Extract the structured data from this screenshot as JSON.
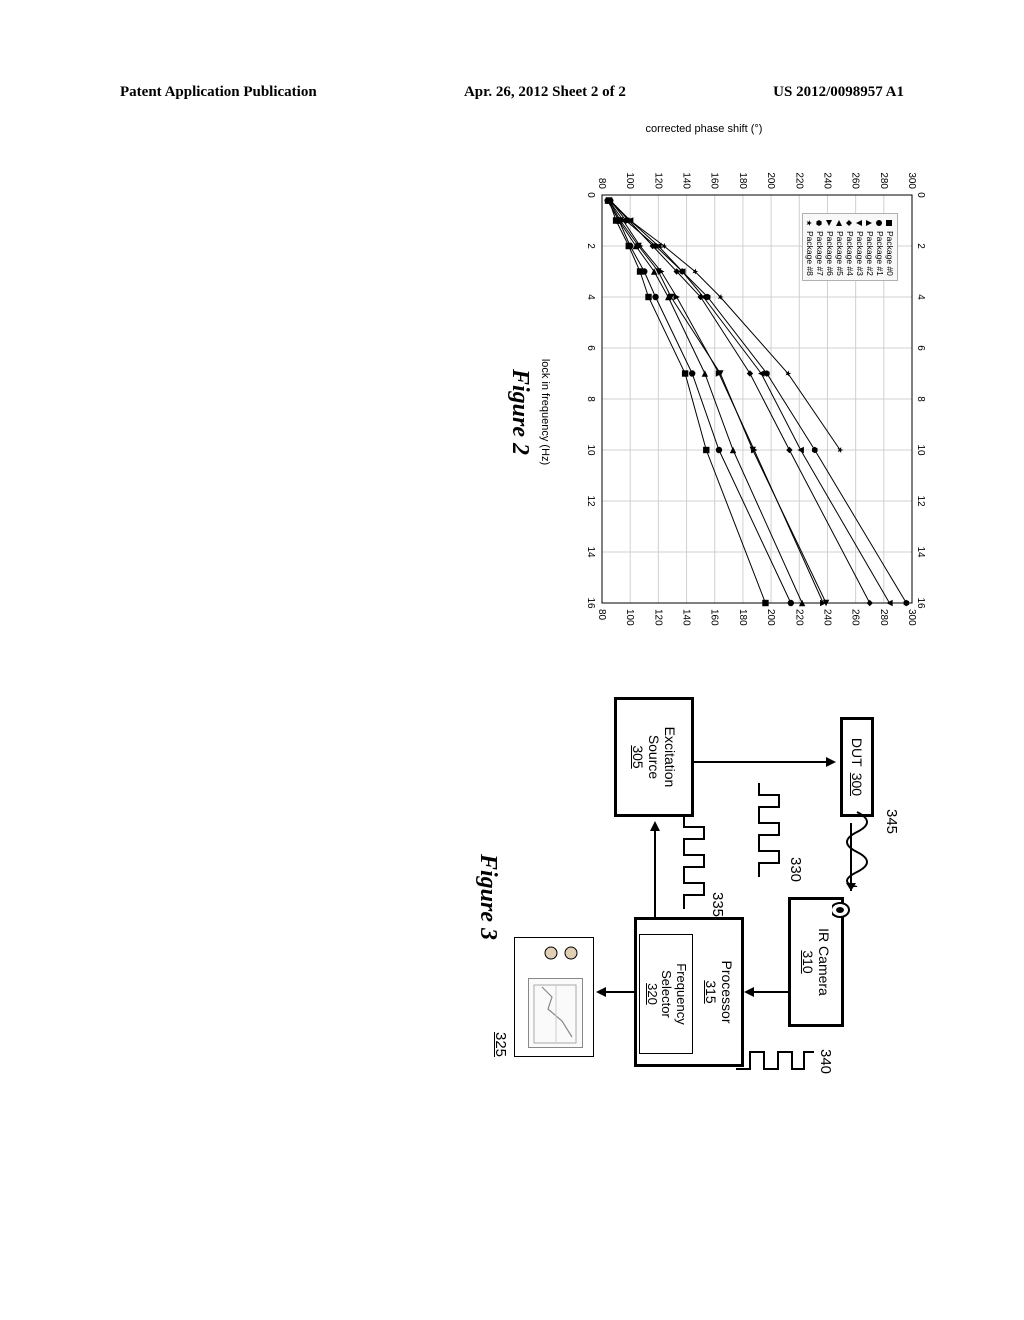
{
  "header": {
    "left": "Patent Application Publication",
    "center": "Apr. 26, 2012  Sheet 2 of 2",
    "right": "US 2012/0098957 A1"
  },
  "figure2": {
    "caption": "Figure 2",
    "ylabel": "corrected phase shift (°)",
    "xlabel": "lock in frequency (Hz)",
    "xlim": [
      0,
      16
    ],
    "ylim": [
      80,
      300
    ],
    "xticks": [
      0,
      2,
      4,
      6,
      8,
      10,
      12,
      14,
      16
    ],
    "yticks": [
      80,
      100,
      120,
      140,
      160,
      180,
      200,
      220,
      240,
      260,
      280,
      300
    ],
    "grid_color": "#d0d0d0",
    "axis_color": "#000000",
    "line_color": "#000000",
    "legend": [
      {
        "label": "Package #0",
        "marker": "square"
      },
      {
        "label": "Package #1",
        "marker": "circle"
      },
      {
        "label": "Package #2",
        "marker": "triangle-up"
      },
      {
        "label": "Package #3",
        "marker": "triangle-down"
      },
      {
        "label": "Package #4",
        "marker": "diamond"
      },
      {
        "label": "Package #5",
        "marker": "triangle-left"
      },
      {
        "label": "Package #6",
        "marker": "triangle-right"
      },
      {
        "label": "Package #7",
        "marker": "hexagon"
      },
      {
        "label": "Package #8",
        "marker": "star"
      }
    ],
    "series": [
      {
        "marker": "square",
        "points": [
          [
            0.22,
            85
          ],
          [
            1,
            90
          ],
          [
            2,
            99
          ],
          [
            3,
            107
          ],
          [
            4,
            113
          ],
          [
            7,
            139
          ],
          [
            10,
            154
          ],
          [
            16,
            196
          ]
        ]
      },
      {
        "marker": "circle",
        "points": [
          [
            0.22,
            84
          ],
          [
            1,
            92
          ],
          [
            2,
            100
          ],
          [
            3,
            110
          ],
          [
            4,
            118
          ],
          [
            7,
            144
          ],
          [
            10,
            163
          ],
          [
            16,
            214
          ]
        ]
      },
      {
        "marker": "triangle-up",
        "points": [
          [
            0.22,
            85
          ],
          [
            1,
            95
          ],
          [
            2,
            107
          ],
          [
            3,
            122
          ],
          [
            4,
            133
          ],
          [
            7,
            163
          ],
          [
            10,
            188
          ],
          [
            16,
            237
          ]
        ]
      },
      {
        "marker": "triangle-down",
        "points": [
          [
            0.22,
            85
          ],
          [
            1,
            100
          ],
          [
            2,
            120
          ],
          [
            3,
            137
          ],
          [
            4,
            152
          ],
          [
            7,
            193
          ],
          [
            10,
            221
          ],
          [
            16,
            284
          ]
        ]
      },
      {
        "marker": "diamond",
        "points": [
          [
            0.22,
            86
          ],
          [
            1,
            99
          ],
          [
            2,
            116
          ],
          [
            3,
            133
          ],
          [
            4,
            150
          ],
          [
            7,
            185
          ],
          [
            10,
            213
          ],
          [
            16,
            270
          ]
        ]
      },
      {
        "marker": "triangle-left",
        "points": [
          [
            0.22,
            84
          ],
          [
            1,
            92
          ],
          [
            2,
            104
          ],
          [
            3,
            117
          ],
          [
            4,
            127
          ],
          [
            7,
            153
          ],
          [
            10,
            173
          ],
          [
            16,
            222
          ]
        ]
      },
      {
        "marker": "triangle-right",
        "points": [
          [
            0.22,
            85
          ],
          [
            1,
            93
          ],
          [
            2,
            106
          ],
          [
            3,
            120
          ],
          [
            4,
            129
          ],
          [
            7,
            164
          ],
          [
            10,
            187
          ],
          [
            16,
            239
          ]
        ]
      },
      {
        "marker": "hexagon",
        "points": [
          [
            0.22,
            86
          ],
          [
            1,
            97
          ],
          [
            2,
            118
          ],
          [
            3,
            137
          ],
          [
            4,
            155
          ],
          [
            7,
            197
          ],
          [
            10,
            231
          ],
          [
            16,
            296
          ]
        ]
      },
      {
        "marker": "star",
        "points": [
          [
            0.22,
            86
          ],
          [
            1,
            100
          ],
          [
            2,
            124
          ],
          [
            3,
            146
          ],
          [
            4,
            164
          ],
          [
            7,
            212
          ],
          [
            10,
            249
          ]
        ]
      }
    ]
  },
  "figure3": {
    "caption": "Figure 3",
    "blocks": {
      "dut": {
        "label": "DUT",
        "ref": "300"
      },
      "excitation": {
        "label": "Excitation\nSource",
        "ref": "305"
      },
      "camera": {
        "label": "IR Camera",
        "ref": "310"
      },
      "processor": {
        "label": "Processor",
        "ref": "315"
      },
      "freqsel": {
        "label": "Frequency\nSelector",
        "ref": "320"
      },
      "display": {
        "ref": "325"
      }
    },
    "callouts": {
      "c330": "330",
      "c335": "335",
      "c340": "340",
      "c345": "345"
    },
    "display_knob_color": "#e0cfb5"
  }
}
